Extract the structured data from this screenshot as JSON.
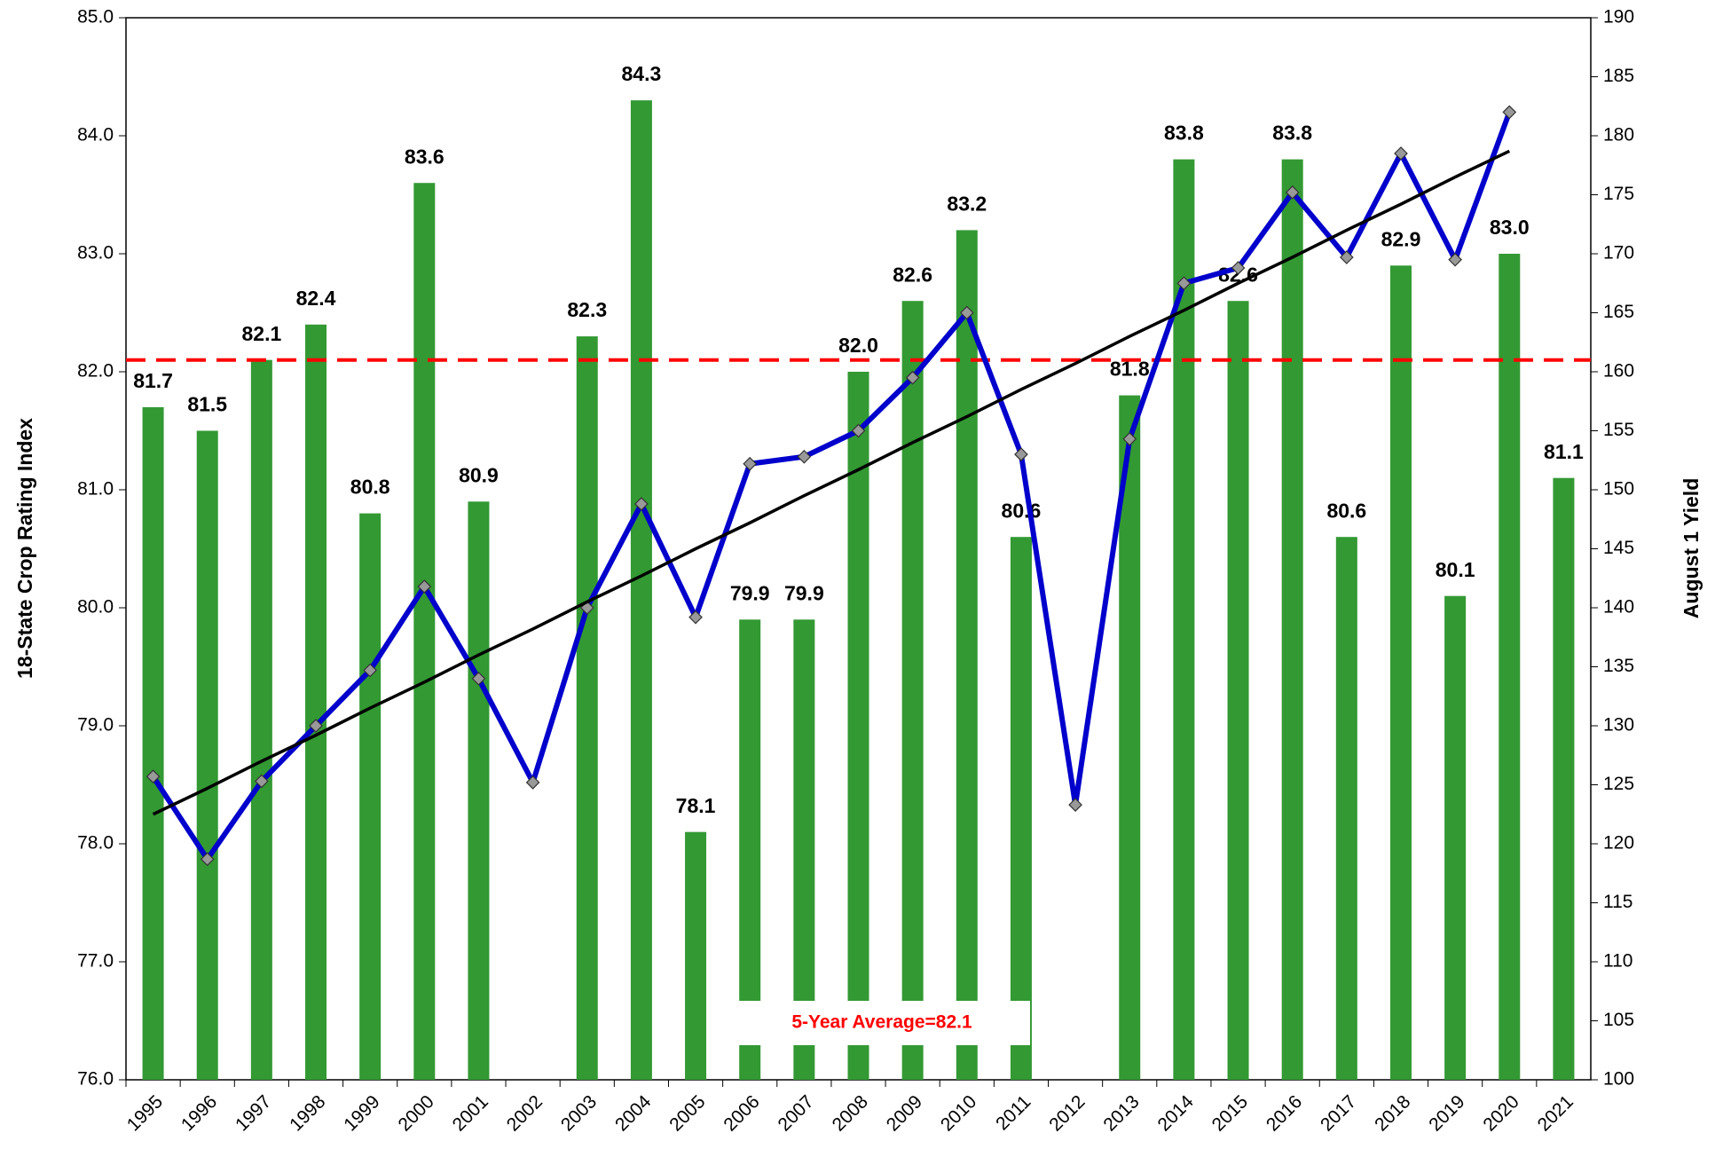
{
  "chart_data": {
    "type": "bar",
    "categories": [
      "1995",
      "1996",
      "1997",
      "1998",
      "1999",
      "2000",
      "2001",
      "2002",
      "2003",
      "2004",
      "2005",
      "2006",
      "2007",
      "2008",
      "2009",
      "2010",
      "2011",
      "2012",
      "2013",
      "2014",
      "2015",
      "2016",
      "2017",
      "2018",
      "2019",
      "2020",
      "2021"
    ],
    "series": [
      {
        "type": "bar",
        "color": "#339933",
        "values": [
          81.7,
          81.5,
          82.1,
          82.4,
          80.8,
          83.6,
          80.9,
          null,
          82.3,
          84.3,
          78.1,
          79.9,
          79.9,
          82.0,
          82.6,
          83.2,
          80.6,
          null,
          81.8,
          83.8,
          82.6,
          83.8,
          80.6,
          82.9,
          80.1,
          83.0,
          81.1
        ],
        "value_labels": [
          "81.7",
          "81.5",
          "82.1",
          "82.4",
          "80.8",
          "83.6",
          "80.9",
          null,
          "82.3",
          "84.3",
          "78.1",
          "79.9",
          "79.9",
          "82.0",
          "82.6",
          "83.2",
          "80.6",
          null,
          "81.8",
          "83.8",
          "82.6",
          "83.8",
          "80.6",
          "82.9",
          "80.1",
          "83.0",
          "81.1"
        ]
      },
      {
        "type": "line",
        "axis": "y2",
        "color": "#0000cc",
        "marker": "diamond",
        "values": [
          125.7,
          118.7,
          125.3,
          130,
          134.7,
          141.8,
          134,
          125.2,
          140,
          148.8,
          139.2,
          152.2,
          152.8,
          155,
          159.5,
          165,
          153,
          123.3,
          154.3,
          167.5,
          168.8,
          175.2,
          169.7,
          178.5,
          169.5,
          182,
          null
        ]
      },
      {
        "type": "line",
        "axis": "y2",
        "color": "#000000",
        "values": [
          122.5,
          124.7,
          127.0,
          129.2,
          131.5,
          133.7,
          136.0,
          138.2,
          140.5,
          142.7,
          145.0,
          147.2,
          149.5,
          151.7,
          154.0,
          156.2,
          158.5,
          160.7,
          163.0,
          165.2,
          167.5,
          169.7,
          172.0,
          174.2,
          176.5,
          178.7,
          null
        ]
      }
    ],
    "average": {
      "value": 82.1,
      "color": "#ff0000",
      "label": "5-Year Average=82.1"
    },
    "ylabel": "18-State Crop Rating Index",
    "y2label": "August 1 Yield",
    "ylim": [
      76,
      85
    ],
    "yticks": [
      {
        "value": 76,
        "label": "76.0"
      },
      {
        "value": 77,
        "label": "77.0"
      },
      {
        "value": 78,
        "label": "78.0"
      },
      {
        "value": 79,
        "label": "79.0"
      },
      {
        "value": 80,
        "label": "80.0"
      },
      {
        "value": 81,
        "label": "81.0"
      },
      {
        "value": 82,
        "label": "82.0"
      },
      {
        "value": 83,
        "label": "83.0"
      },
      {
        "value": 84,
        "label": "84.0"
      },
      {
        "value": 85,
        "label": "85.0"
      }
    ],
    "y2lim": [
      100,
      190
    ],
    "y2ticks": [
      100,
      105,
      110,
      115,
      120,
      125,
      130,
      135,
      140,
      145,
      150,
      155,
      160,
      165,
      170,
      175,
      180,
      185,
      190
    ]
  }
}
